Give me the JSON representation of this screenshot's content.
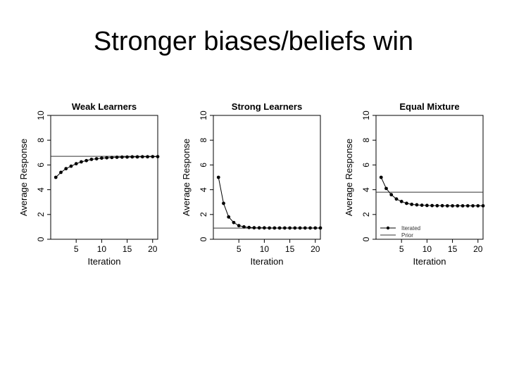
{
  "slide": {
    "title": "Stronger biases/beliefs win"
  },
  "chart_data": [
    {
      "type": "line",
      "title": "Weak Learners",
      "xlabel": "Iteration",
      "ylabel": "Average Response",
      "xlim": [
        0,
        21
      ],
      "ylim": [
        0,
        10
      ],
      "xticks": [
        5,
        10,
        15,
        20
      ],
      "yticks": [
        0,
        2,
        4,
        6,
        8,
        10
      ],
      "x": [
        1,
        2,
        3,
        4,
        5,
        6,
        7,
        8,
        9,
        10,
        11,
        12,
        13,
        14,
        15,
        16,
        17,
        18,
        19,
        20,
        21
      ],
      "series": [
        {
          "name": "Iterated",
          "values": [
            5.0,
            5.4,
            5.7,
            5.9,
            6.1,
            6.25,
            6.35,
            6.45,
            6.5,
            6.55,
            6.58,
            6.6,
            6.62,
            6.63,
            6.64,
            6.65,
            6.65,
            6.66,
            6.66,
            6.67,
            6.67
          ]
        }
      ],
      "prior": 6.7
    },
    {
      "type": "line",
      "title": "Strong Learners",
      "xlabel": "Iteration",
      "ylabel": "Average Response",
      "xlim": [
        0,
        21
      ],
      "ylim": [
        0,
        10
      ],
      "xticks": [
        5,
        10,
        15,
        20
      ],
      "yticks": [
        0,
        2,
        4,
        6,
        8,
        10
      ],
      "x": [
        1,
        2,
        3,
        4,
        5,
        6,
        7,
        8,
        9,
        10,
        11,
        12,
        13,
        14,
        15,
        16,
        17,
        18,
        19,
        20,
        21
      ],
      "series": [
        {
          "name": "Iterated",
          "values": [
            5.0,
            2.9,
            1.8,
            1.35,
            1.1,
            1.0,
            0.95,
            0.93,
            0.92,
            0.92,
            0.91,
            0.91,
            0.91,
            0.91,
            0.91,
            0.91,
            0.91,
            0.91,
            0.91,
            0.91,
            0.91
          ]
        }
      ],
      "prior": 0.9
    },
    {
      "type": "line",
      "title": "Equal Mixture",
      "xlabel": "Iteration",
      "ylabel": "Average Response",
      "xlim": [
        0,
        21
      ],
      "ylim": [
        0,
        10
      ],
      "xticks": [
        5,
        10,
        15,
        20
      ],
      "yticks": [
        0,
        2,
        4,
        6,
        8,
        10
      ],
      "x": [
        1,
        2,
        3,
        4,
        5,
        6,
        7,
        8,
        9,
        10,
        11,
        12,
        13,
        14,
        15,
        16,
        17,
        18,
        19,
        20,
        21
      ],
      "series": [
        {
          "name": "Iterated",
          "values": [
            5.0,
            4.1,
            3.6,
            3.25,
            3.05,
            2.9,
            2.82,
            2.78,
            2.75,
            2.73,
            2.72,
            2.71,
            2.71,
            2.7,
            2.7,
            2.7,
            2.7,
            2.7,
            2.7,
            2.7,
            2.7
          ]
        }
      ],
      "prior": 3.8,
      "legend": {
        "position": "bottom-left",
        "entries": [
          "Iterated",
          "Prior"
        ]
      }
    }
  ]
}
